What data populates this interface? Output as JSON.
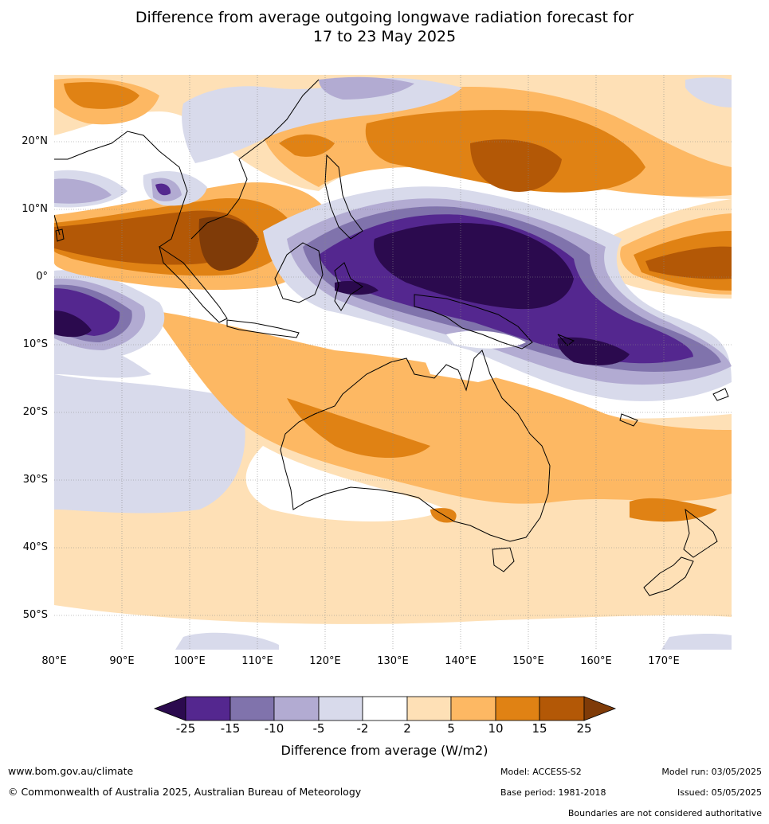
{
  "title_line1": "Difference from average outgoing longwave radiation forecast for",
  "title_line2": "17 to 23 May 2025",
  "lat_labels": [
    "20°N",
    "10°N",
    "0°",
    "10°S",
    "20°S",
    "30°S",
    "40°S",
    "50°S"
  ],
  "lon_labels": [
    "80°E",
    "90°E",
    "100°E",
    "110°E",
    "120°E",
    "130°E",
    "140°E",
    "150°E",
    "160°E",
    "170°E"
  ],
  "colorbar": {
    "ticks": [
      "-25",
      "-15",
      "-10",
      "-5",
      "-2",
      "2",
      "5",
      "10",
      "15",
      "25"
    ],
    "label": "Difference from average (W/m2)",
    "colors": {
      "lt_-25": "#2b0a4e",
      "-25_-15": "#54278f",
      "-15_-10": "#8073ac",
      "-10_-5": "#b2abd2",
      "-5_-2": "#d8daeb",
      "-2_2": "#ffffff",
      "2_5": "#fee0b6",
      "5_10": "#fdb863",
      "10_15": "#e08214",
      "15_25": "#b35806",
      "gt_25": "#7f3b08"
    }
  },
  "footer": {
    "url": "www.bom.gov.au/climate",
    "copyright": "© Commonwealth of Australia 2025, Australian Bureau of Meteorology",
    "model": "Model: ACCESS-S2",
    "model_run": "Model run: 03/05/2025",
    "base_period": "Base period: 1981-2018",
    "issued": "Issued: 05/05/2025",
    "disclaimer": "Boundaries are not considered authoritative"
  }
}
